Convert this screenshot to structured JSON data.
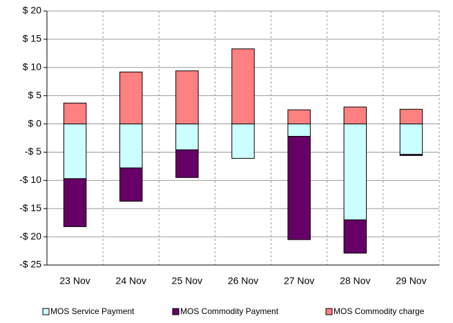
{
  "chart_data": {
    "type": "stacked_bar",
    "categories": [
      "23 Nov",
      "24 Nov",
      "25 Nov",
      "26 Nov",
      "27 Nov",
      "28 Nov",
      "29 Nov"
    ],
    "series": [
      {
        "name": "MOS Service Payment",
        "color": "#ccffff",
        "values": [
          -9.7,
          -7.8,
          -4.6,
          -6.1,
          -2.2,
          -17.0,
          -5.4
        ]
      },
      {
        "name": "MOS Commodity Payment",
        "color": "#660066",
        "values": [
          -8.5,
          -5.9,
          -4.9,
          0,
          -18.3,
          -5.9,
          -0.2
        ]
      },
      {
        "name": "MOS Commodity charge",
        "color": "#ff8080",
        "values": [
          3.7,
          9.2,
          9.4,
          13.3,
          2.5,
          3.0,
          2.6
        ]
      }
    ],
    "ylim": [
      -25,
      20
    ],
    "yticks": [
      {
        "value": 20,
        "label": "$ 20"
      },
      {
        "value": 15,
        "label": "$ 15"
      },
      {
        "value": 10,
        "label": "$ 10"
      },
      {
        "value": 5,
        "label": "$ 5"
      },
      {
        "value": 0,
        "label": "$ 0"
      },
      {
        "value": -5,
        "label": "-$ 5"
      },
      {
        "value": -10,
        "label": "-$ 10"
      },
      {
        "value": -15,
        "label": "-$ 15"
      },
      {
        "value": -20,
        "label": "-$ 20"
      },
      {
        "value": -25,
        "label": "-$ 25"
      }
    ],
    "grid": true,
    "legend": "bottom"
  }
}
